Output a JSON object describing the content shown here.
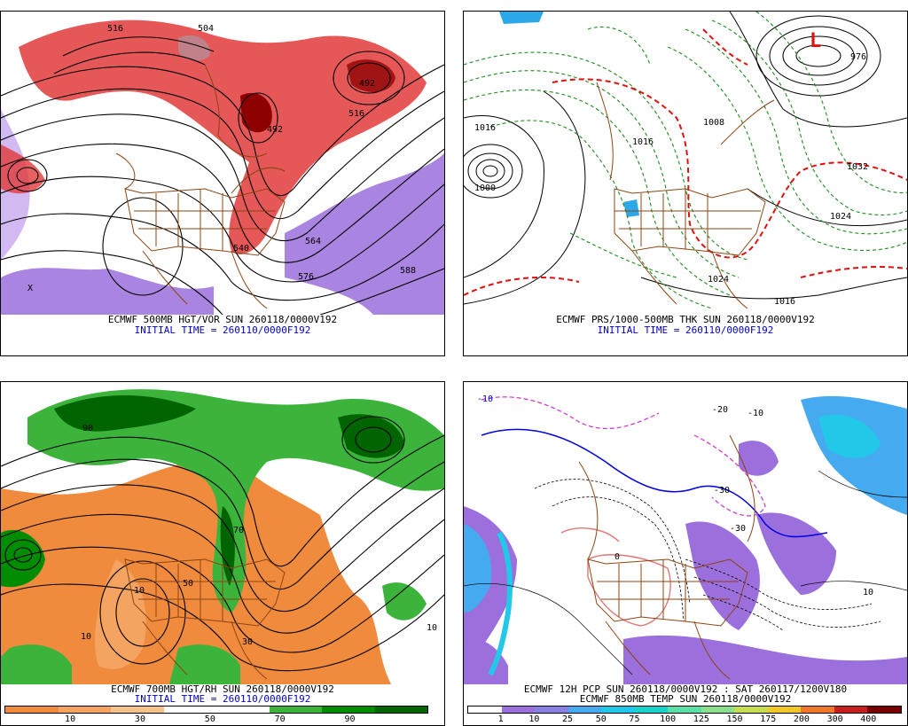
{
  "panels": {
    "p1": {
      "caption": "ECMWF 500MB HGT/VOR SUN 260118/0000V192",
      "initial": "INITIAL TIME = 260110/0000F192",
      "labels": [
        "516",
        "504",
        "492",
        "492",
        "516",
        "540",
        "564",
        "576",
        "588",
        "X"
      ]
    },
    "p2": {
      "caption": "ECMWF PRS/1000-500MB THK SUN 260118/0000V192",
      "initial": "INITIAL TIME = 260110/0000F192",
      "labels": [
        "1016",
        "1000",
        "1008",
        "1016",
        "1032",
        "1024",
        "1024",
        "1016",
        "976",
        "L"
      ]
    },
    "p3": {
      "caption": "ECMWF 700MB HGT/RH SUN 260118/0000V192",
      "initial": "INITIAL TIME = 260110/0000F192",
      "labels": [
        "10",
        "10",
        "30",
        "50",
        "70",
        "90",
        "10"
      ]
    },
    "p4": {
      "caption": "ECMWF 12H PCP SUN 260118/0000V192 : SAT 260117/1200V180",
      "caption2": "ECMWF 850MB TEMP SUN 260118/0000V192",
      "labels": [
        "-10",
        "-20",
        "-30",
        "-10",
        "-30",
        "0",
        "10"
      ]
    }
  },
  "legend_rh": {
    "ticks": [
      "10",
      "30",
      "50",
      "70",
      "90"
    ],
    "colors": [
      "#f08a3c",
      "#f4a460",
      "#f6c28c",
      "#ffffff",
      "#ffffff",
      "#3cb43c",
      "#008c00",
      "#006400"
    ]
  },
  "legend_pcp": {
    "ticks": [
      "1",
      "10",
      "25",
      "50",
      "75",
      "100",
      "125",
      "150",
      "175",
      "200",
      "300",
      "400"
    ],
    "colors": [
      "#ffffff",
      "#9b6fdc",
      "#8a7fe0",
      "#46aaf0",
      "#22c8e8",
      "#19d2c8",
      "#58e0a8",
      "#8ce08c",
      "#c8dc50",
      "#f0c828",
      "#f07828",
      "#c81e1e",
      "#780000"
    ]
  }
}
